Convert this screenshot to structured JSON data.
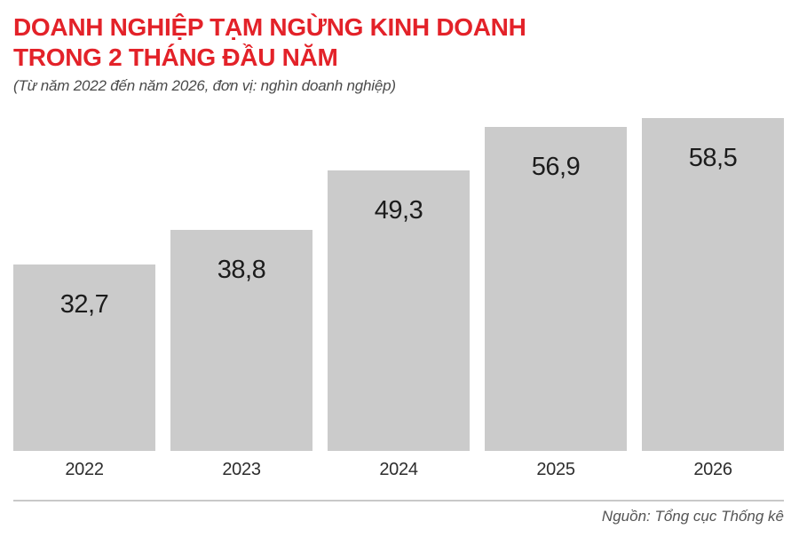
{
  "header": {
    "title_lines": [
      "DOANH NGHIỆP TẠM NGỪNG KINH DOANH",
      "TRONG 2 THÁNG ĐẦU NĂM"
    ],
    "subtitle": "(Từ năm 2022 đến năm 2026, đơn vị: nghìn doanh nghiệp)"
  },
  "chart_data": {
    "type": "bar",
    "title": "DOANH NGHIỆP TẠM NGỪNG KINH DOANH TRONG 2 THÁNG ĐẦU NĂM",
    "subtitle": "(Từ năm 2022 đến năm 2026, đơn vị: nghìn doanh nghiệp)",
    "unit": "nghìn doanh nghiệp",
    "categories": [
      "2022",
      "2023",
      "2024",
      "2025",
      "2026"
    ],
    "values": [
      32.7,
      38.8,
      49.3,
      56.9,
      58.5
    ],
    "display_values": [
      "32,7",
      "38,8",
      "49,3",
      "56,9",
      "58,5"
    ],
    "xlabel": "",
    "ylabel": "",
    "ylim": [
      0,
      58.5
    ],
    "grid": false,
    "legend": false,
    "value_labels_position": "inside-top"
  },
  "footer": {
    "source": "Nguồn: Tổng cục Thống kê"
  },
  "colors": {
    "accent_red": "#e32229",
    "bar_gray": "#cbcbcb",
    "value_label": "#1c1c1c",
    "year_label": "#2d2d2d",
    "subtitle_gray": "#4a4a4a",
    "source_gray": "#545454",
    "divider_gray": "#c9c9c9",
    "background": "#ffffff"
  }
}
